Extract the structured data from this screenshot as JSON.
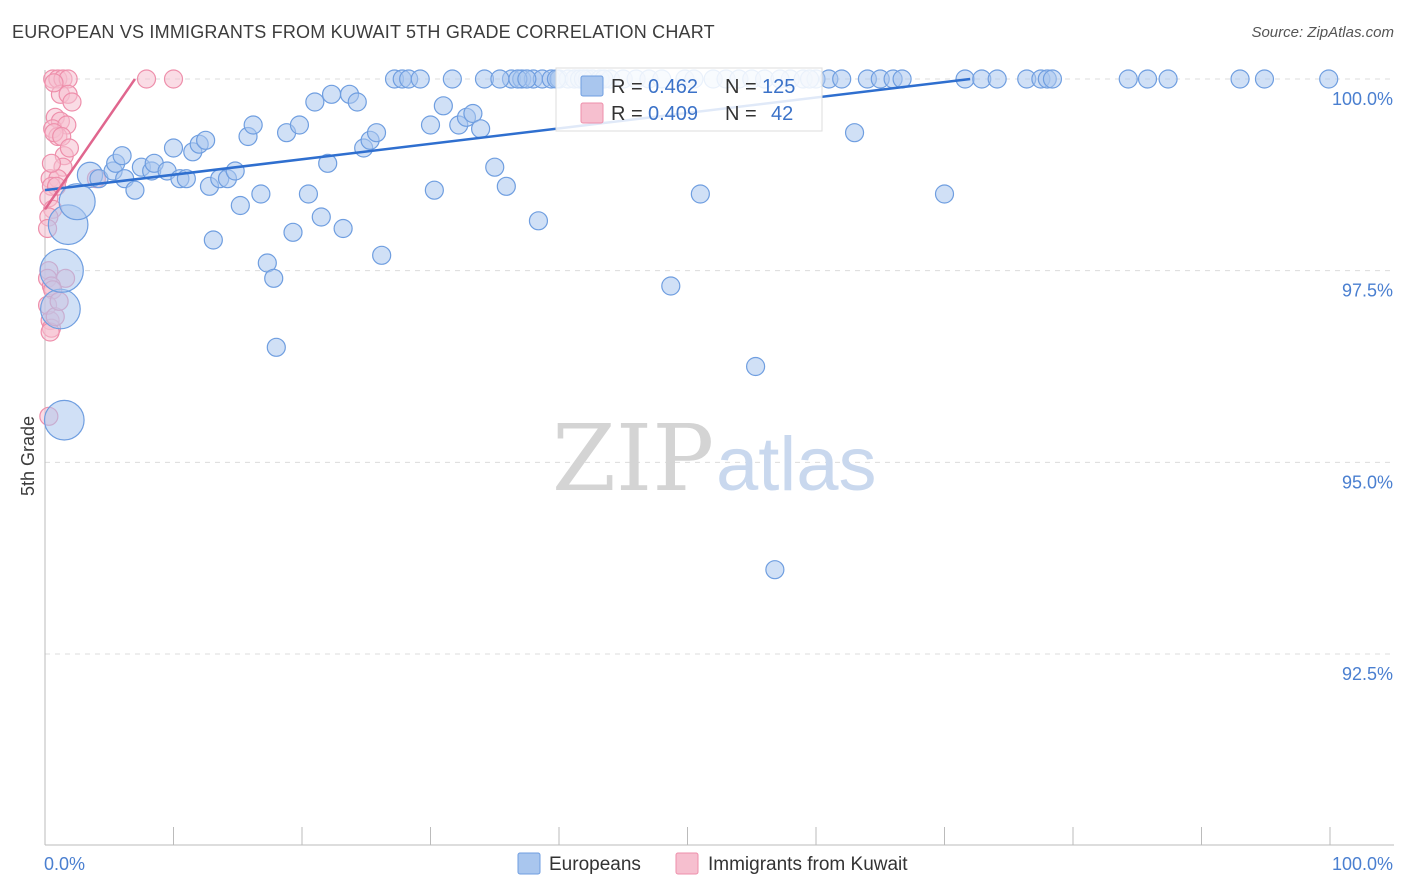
{
  "title": "EUROPEAN VS IMMIGRANTS FROM KUWAIT 5TH GRADE CORRELATION CHART",
  "source": "Source: ZipAtlas.com",
  "watermark": {
    "zip": "ZIP",
    "atlas": "atlas"
  },
  "colors": {
    "blue_fill": "#a9c6ee",
    "blue_stroke": "#6f9ee0",
    "blue_line": "#2f6fcf",
    "pink_fill": "#f6bfcf",
    "pink_stroke": "#ee8fab",
    "pink_line": "#e0668e",
    "grid": "#dcdcdc",
    "axis_text": "#4a7fd0"
  },
  "legend": {
    "rows": [
      {
        "r_label": "R =",
        "r_value": "0.462",
        "n_label": "N =",
        "n_value": "125",
        "series": "blue"
      },
      {
        "r_label": "R =",
        "r_value": "0.409",
        "n_label": "N =",
        "n_value": "42",
        "series": "pink"
      }
    ]
  },
  "bottom_legend": [
    "Europeans",
    "Immigrants from Kuwait"
  ],
  "chart_data": {
    "type": "scatter",
    "title": "EUROPEAN VS IMMIGRANTS FROM KUWAIT 5TH GRADE CORRELATION CHART",
    "ylabel": "5th Grade",
    "xlabel": "",
    "xlim": [
      0,
      100
    ],
    "ylim": [
      90.0,
      100.2
    ],
    "xtick_labels": [
      "0.0%",
      "100.0%"
    ],
    "ytick_values": [
      100.0,
      97.5,
      95.0,
      92.5
    ],
    "ytick_labels": [
      "100.0%",
      "97.5%",
      "95.0%",
      "92.5%"
    ],
    "series": [
      {
        "name": "Europeans",
        "color": "blue",
        "trend": {
          "x": [
            0.0,
            72.0
          ],
          "y": [
            98.55,
            100.0
          ]
        },
        "points": [
          [
            1.5,
            95.55,
            2.2
          ],
          [
            1.2,
            97.0,
            2.2
          ],
          [
            1.3,
            97.5,
            2.4
          ],
          [
            1.8,
            98.1,
            2.2
          ],
          [
            2.5,
            98.4,
            2.0
          ],
          [
            3.5,
            98.75,
            1.4
          ],
          [
            4.2,
            98.7,
            1.0
          ],
          [
            5.3,
            98.8,
            1.0
          ],
          [
            5.5,
            98.9,
            1.0
          ],
          [
            6.0,
            99.0,
            1.0
          ],
          [
            6.2,
            98.7,
            1.0
          ],
          [
            7.0,
            98.55,
            1.0
          ],
          [
            7.5,
            98.85,
            1.0
          ],
          [
            8.3,
            98.8,
            1.0
          ],
          [
            8.5,
            98.9,
            1.0
          ],
          [
            9.5,
            98.8,
            1.0
          ],
          [
            10.0,
            99.1,
            1.0
          ],
          [
            10.5,
            98.7,
            1.0
          ],
          [
            11.0,
            98.7,
            1.0
          ],
          [
            11.5,
            99.05,
            1.0
          ],
          [
            12.0,
            99.15,
            1.0
          ],
          [
            12.5,
            99.2,
            1.0
          ],
          [
            12.8,
            98.6,
            1.0
          ],
          [
            13.1,
            97.9,
            1.0
          ],
          [
            13.6,
            98.7,
            1.0
          ],
          [
            14.2,
            98.7,
            1.0
          ],
          [
            14.8,
            98.8,
            1.0
          ],
          [
            15.2,
            98.35,
            1.0
          ],
          [
            15.8,
            99.25,
            1.0
          ],
          [
            16.2,
            99.4,
            1.0
          ],
          [
            16.8,
            98.5,
            1.0
          ],
          [
            17.3,
            97.6,
            1.0
          ],
          [
            17.8,
            97.4,
            1.0
          ],
          [
            18.0,
            96.5,
            1.0
          ],
          [
            18.8,
            99.3,
            1.0
          ],
          [
            19.3,
            98.0,
            1.0
          ],
          [
            19.8,
            99.4,
            1.0
          ],
          [
            20.5,
            98.5,
            1.0
          ],
          [
            21.0,
            99.7,
            1.0
          ],
          [
            21.5,
            98.2,
            1.0
          ],
          [
            22.0,
            98.9,
            1.0
          ],
          [
            22.3,
            99.8,
            1.0
          ],
          [
            23.2,
            98.05,
            1.0
          ],
          [
            23.7,
            99.8,
            1.0
          ],
          [
            24.3,
            99.7,
            1.0
          ],
          [
            24.8,
            99.1,
            1.0
          ],
          [
            25.3,
            99.2,
            1.0
          ],
          [
            25.8,
            99.3,
            1.0
          ],
          [
            26.2,
            97.7,
            1.0
          ],
          [
            27.2,
            100.0,
            1.0
          ],
          [
            27.8,
            100.0,
            1.0
          ],
          [
            28.3,
            100.0,
            1.0
          ],
          [
            29.2,
            100.0,
            1.0
          ],
          [
            30.0,
            99.4,
            1.0
          ],
          [
            30.3,
            98.55,
            1.0
          ],
          [
            31.0,
            99.65,
            1.0
          ],
          [
            31.7,
            100.0,
            1.0
          ],
          [
            32.2,
            99.4,
            1.0
          ],
          [
            32.8,
            99.5,
            1.0
          ],
          [
            33.3,
            99.55,
            1.0
          ],
          [
            33.9,
            99.35,
            1.0
          ],
          [
            34.2,
            100.0,
            1.0
          ],
          [
            35.0,
            98.85,
            1.0
          ],
          [
            35.9,
            98.6,
            1.0
          ],
          [
            36.3,
            100.0,
            1.0
          ],
          [
            37.1,
            100.0,
            1.0
          ],
          [
            38.0,
            100.0,
            1.0
          ],
          [
            38.4,
            98.15,
            1.0
          ],
          [
            38.7,
            100.0,
            1.0
          ],
          [
            39.4,
            100.0,
            1.0
          ],
          [
            40.0,
            100.0,
            1.0
          ],
          [
            40.7,
            100.0,
            1.0
          ],
          [
            41.2,
            100.0,
            1.0
          ],
          [
            41.6,
            100.0,
            1.0
          ],
          [
            42.2,
            100.0,
            1.0
          ],
          [
            42.6,
            100.0,
            1.0
          ],
          [
            43.2,
            100.0,
            1.0
          ],
          [
            44.0,
            100.0,
            1.0
          ],
          [
            45.0,
            100.0,
            1.0
          ],
          [
            46.0,
            100.0,
            1.0
          ],
          [
            47.0,
            100.0,
            1.0
          ],
          [
            48.0,
            100.0,
            1.0
          ],
          [
            48.7,
            97.3,
            1.0
          ],
          [
            49.8,
            100.0,
            1.0
          ],
          [
            50.5,
            100.0,
            1.0
          ],
          [
            51.0,
            98.5,
            1.0
          ],
          [
            52.0,
            100.0,
            1.0
          ],
          [
            53.0,
            100.0,
            1.0
          ],
          [
            54.0,
            100.0,
            1.0
          ],
          [
            55.0,
            100.0,
            1.0
          ],
          [
            55.3,
            96.25,
            1.0
          ],
          [
            56.0,
            100.0,
            1.0
          ],
          [
            56.8,
            93.6,
            1.0
          ],
          [
            58.0,
            100.0,
            1.0
          ],
          [
            59.0,
            100.0,
            1.0
          ],
          [
            60.0,
            100.0,
            1.0
          ],
          [
            61.0,
            100.0,
            1.0
          ],
          [
            62.0,
            100.0,
            1.0
          ],
          [
            63.0,
            99.3,
            1.0
          ],
          [
            64.0,
            100.0,
            1.0
          ],
          [
            65.0,
            100.0,
            1.0
          ],
          [
            66.0,
            100.0,
            1.0
          ],
          [
            66.7,
            100.0,
            1.0
          ],
          [
            70.0,
            98.5,
            1.0
          ],
          [
            71.6,
            100.0,
            1.0
          ],
          [
            72.9,
            100.0,
            1.0
          ],
          [
            74.1,
            100.0,
            1.0
          ],
          [
            76.4,
            100.0,
            1.0
          ],
          [
            77.5,
            100.0,
            1.0
          ],
          [
            78.0,
            100.0,
            1.0
          ],
          [
            78.4,
            100.0,
            1.0
          ],
          [
            84.3,
            100.0,
            1.0
          ],
          [
            85.8,
            100.0,
            1.0
          ],
          [
            87.4,
            100.0,
            1.0
          ],
          [
            93.0,
            100.0,
            1.0
          ],
          [
            94.9,
            100.0,
            1.0
          ],
          [
            99.9,
            100.0,
            1.0
          ],
          [
            35.4,
            100.0,
            1.0
          ],
          [
            36.8,
            100.0,
            1.0
          ],
          [
            39.8,
            100.0,
            1.0
          ],
          [
            41.9,
            100.0,
            1.0
          ],
          [
            43.5,
            100.0,
            1.0
          ],
          [
            37.5,
            100.0,
            1.0
          ],
          [
            57.2,
            100.0,
            1.0
          ],
          [
            59.5,
            100.0,
            1.0
          ]
        ]
      },
      {
        "name": "Immigrants from Kuwait",
        "color": "pink",
        "trend": {
          "x": [
            0.0,
            7.0
          ],
          "y": [
            98.3,
            100.0
          ]
        },
        "points": [
          [
            0.6,
            100.0,
            1.0
          ],
          [
            1.0,
            100.0,
            1.0
          ],
          [
            1.4,
            100.0,
            1.0
          ],
          [
            1.8,
            100.0,
            1.0
          ],
          [
            1.2,
            99.8,
            1.0
          ],
          [
            1.8,
            99.8,
            1.0
          ],
          [
            2.1,
            99.7,
            1.0
          ],
          [
            0.8,
            99.5,
            1.0
          ],
          [
            1.2,
            99.45,
            1.0
          ],
          [
            0.6,
            99.35,
            1.0
          ],
          [
            1.7,
            99.4,
            1.0
          ],
          [
            1.0,
            99.25,
            1.0
          ],
          [
            0.7,
            99.3,
            1.0
          ],
          [
            1.3,
            99.25,
            1.0
          ],
          [
            1.5,
            99.0,
            1.0
          ],
          [
            1.4,
            98.85,
            1.0
          ],
          [
            0.4,
            98.7,
            1.0
          ],
          [
            1.0,
            98.7,
            1.0
          ],
          [
            0.5,
            98.6,
            1.0
          ],
          [
            0.9,
            98.6,
            1.0
          ],
          [
            0.3,
            98.45,
            1.0
          ],
          [
            0.6,
            98.3,
            1.0
          ],
          [
            0.3,
            98.2,
            1.0
          ],
          [
            0.2,
            98.05,
            1.0
          ],
          [
            0.3,
            97.5,
            1.0
          ],
          [
            0.2,
            97.4,
            1.0
          ],
          [
            1.6,
            97.4,
            1.0
          ],
          [
            0.5,
            97.3,
            1.0
          ],
          [
            0.6,
            97.25,
            1.0
          ],
          [
            0.4,
            96.85,
            1.0
          ],
          [
            0.5,
            96.75,
            1.0
          ],
          [
            0.4,
            96.7,
            1.0
          ],
          [
            0.3,
            95.6,
            1.0
          ],
          [
            7.9,
            100.0,
            1.0
          ],
          [
            10.0,
            100.0,
            1.0
          ],
          [
            4.0,
            98.7,
            1.0
          ],
          [
            0.2,
            97.05,
            1.0
          ],
          [
            0.8,
            96.9,
            1.0
          ],
          [
            1.1,
            97.1,
            1.0
          ],
          [
            0.5,
            98.9,
            1.0
          ],
          [
            1.9,
            99.1,
            1.0
          ],
          [
            0.7,
            99.95,
            1.0
          ]
        ]
      }
    ]
  }
}
